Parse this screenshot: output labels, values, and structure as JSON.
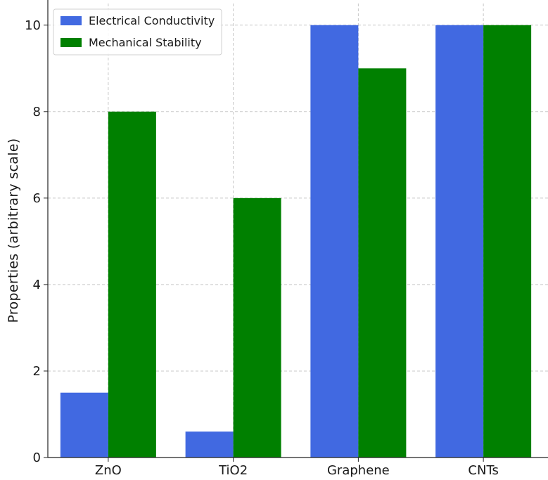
{
  "chart_data": {
    "type": "bar",
    "title": "",
    "xlabel": "",
    "ylabel": "Properties (arbitrary scale)",
    "categories": [
      "ZnO",
      "TiO2",
      "Graphene",
      "CNTs"
    ],
    "series": [
      {
        "name": "Electrical Conductivity",
        "values": [
          1.5,
          0.6,
          10,
          10
        ],
        "color": "#4169e1"
      },
      {
        "name": "Mechanical Stability",
        "values": [
          8,
          6,
          9,
          10
        ],
        "color": "#008000"
      }
    ],
    "ylim": [
      0,
      10.5
    ],
    "yticks": [
      0,
      2,
      4,
      6,
      8,
      10
    ],
    "grid": true,
    "legend_position": "top-left"
  }
}
